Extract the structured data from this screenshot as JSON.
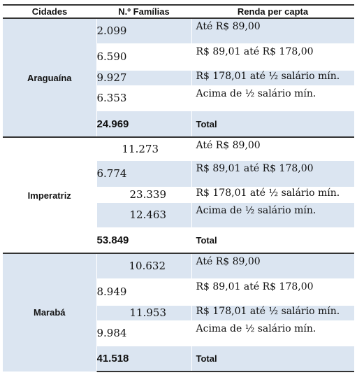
{
  "headers": {
    "city": "Cidades",
    "families": "N.º Famílias",
    "income": "Renda per capta"
  },
  "groups": [
    {
      "city": "Araguaína",
      "rows": [
        {
          "families": "2.099",
          "income": "Até R$ 89,00"
        },
        {
          "families": "6.590",
          "income": "R$ 89,01 até R$ 178,00"
        },
        {
          "families": "9.927",
          "income": "R$ 178,01 até ½ salário mín."
        },
        {
          "families": "6.353",
          "income": "Acima de ½ salário mín."
        }
      ],
      "total": {
        "families": "24.969",
        "label": "Total"
      }
    },
    {
      "city": "Imperatriz",
      "rows": [
        {
          "families": "11.273",
          "income": "Até R$ 89,00"
        },
        {
          "families": "6.774",
          "income": "R$ 89,01 até R$ 178,00"
        },
        {
          "families": "23.339",
          "income": "R$ 178,01 até ½ salário mín."
        },
        {
          "families": "12.463",
          "income": "Acima de ½ salário mín."
        }
      ],
      "total": {
        "families": "53.849",
        "label": "Total"
      }
    },
    {
      "city": "Marabá",
      "rows": [
        {
          "families": "10.632",
          "income": "Até R$ 89,00"
        },
        {
          "families": "8.949",
          "income": "R$ 89,01 até R$ 178,00"
        },
        {
          "families": "11.953",
          "income": "R$ 178,01 até ½ salário mín."
        },
        {
          "families": "9.984",
          "income": "Acima de ½ salário mín."
        }
      ],
      "total": {
        "families": "41.518",
        "label": "Total"
      }
    }
  ],
  "colors": {
    "shade": "#dbe5f1",
    "white": "#ffffff",
    "rule": "#333333"
  }
}
